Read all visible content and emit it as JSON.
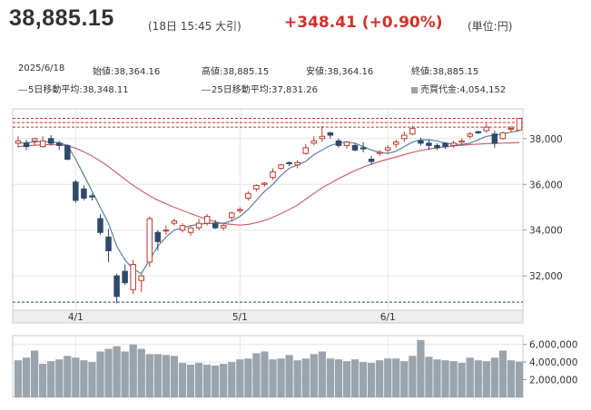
{
  "header": {
    "price": "38,885.15",
    "meta": "(18日 15:45 大引)",
    "change": "+348.41",
    "change_pct": "(+0.90%)",
    "unit": "(単位:円)",
    "change_color": "#d0322a"
  },
  "info": {
    "date": "2025/6/18",
    "open_label": "始値",
    "open": "38,364.16",
    "high_label": "高値",
    "high": "38,885.15",
    "low_label": "安値",
    "low": "38,364.16",
    "close_label": "終値",
    "close": "38,885.15",
    "ma5_label": "5日移動平均",
    "ma5": "38,348.11",
    "ma25_label": "25日移動平均",
    "ma25": "37,831.26",
    "vol_label": "売買代金",
    "vol": "4,054,152"
  },
  "chart_data": {
    "type": "candlestick",
    "price_axis": {
      "ylim": [
        30500,
        39300
      ],
      "ticks": [
        "38,000",
        "36,000",
        "34,000",
        "32,000"
      ],
      "tick_values": [
        38000,
        36000,
        34000,
        32000
      ]
    },
    "volume_axis": {
      "ylim": [
        0,
        7000000
      ],
      "ticks": [
        "6,000,000",
        "4,000,000",
        "2,000,000"
      ],
      "tick_values": [
        6000000,
        4000000,
        2000000
      ]
    },
    "x_ticks": [
      {
        "label": "4/1",
        "index": 7
      },
      {
        "label": "5/1",
        "index": 27
      },
      {
        "label": "6/1",
        "index": 45
      }
    ],
    "reference_lines": [
      38885,
      38700,
      38500,
      30850
    ],
    "colors": {
      "up": "#c0392b",
      "down": "#2e4a6b",
      "ma5": "#5a7fa6",
      "ma25": "#c96470",
      "volume": "#9aa4ad",
      "grid": "#e6e6e6",
      "ref": "#c0392b"
    },
    "candles": [
      [
        37800,
        38100,
        37600,
        37900
      ],
      [
        37800,
        37950,
        37500,
        37650
      ],
      [
        37900,
        38050,
        37700,
        38000
      ],
      [
        37650,
        38100,
        37600,
        37900
      ],
      [
        38000,
        38150,
        37700,
        37800
      ],
      [
        37800,
        37900,
        37500,
        37700
      ],
      [
        37700,
        37750,
        37050,
        37100
      ],
      [
        36100,
        36200,
        35200,
        35300
      ],
      [
        35800,
        35950,
        35300,
        35400
      ],
      [
        35500,
        35600,
        35300,
        35450
      ],
      [
        34500,
        34700,
        33800,
        33900
      ],
      [
        33700,
        34050,
        32600,
        33100
      ],
      [
        32000,
        32100,
        30800,
        31100
      ],
      [
        32200,
        32500,
        31600,
        31700
      ],
      [
        31400,
        32700,
        31200,
        32500
      ],
      [
        31800,
        32100,
        31300,
        32000
      ],
      [
        32600,
        34600,
        32400,
        34500
      ],
      [
        33900,
        34000,
        33100,
        33500
      ],
      [
        34000,
        34200,
        33800,
        34000
      ],
      [
        34300,
        34500,
        34200,
        34400
      ],
      [
        34000,
        34300,
        33900,
        34200
      ],
      [
        33900,
        34200,
        33750,
        34100
      ],
      [
        34100,
        34500,
        34000,
        34300
      ],
      [
        34300,
        34700,
        34200,
        34600
      ],
      [
        34300,
        34450,
        34050,
        34100
      ],
      [
        34100,
        34300,
        34000,
        34200
      ],
      [
        34550,
        34800,
        34400,
        34750
      ],
      [
        34850,
        35000,
        34750,
        34900
      ],
      [
        35400,
        35700,
        35300,
        35600
      ],
      [
        35800,
        36000,
        35700,
        35950
      ],
      [
        36000,
        36100,
        35900,
        36050
      ],
      [
        36300,
        36700,
        36200,
        36550
      ],
      [
        36700,
        36900,
        36650,
        36850
      ],
      [
        36950,
        37000,
        36800,
        36900
      ],
      [
        36850,
        37050,
        36700,
        36950
      ],
      [
        37350,
        37750,
        37300,
        37600
      ],
      [
        37800,
        38100,
        37700,
        37900
      ],
      [
        38000,
        38550,
        37850,
        38100
      ],
      [
        38250,
        38300,
        38000,
        38150
      ],
      [
        37900,
        38000,
        37600,
        37700
      ],
      [
        37700,
        37900,
        37550,
        37850
      ],
      [
        37700,
        37800,
        37450,
        37500
      ],
      [
        37600,
        37850,
        37400,
        37550
      ],
      [
        37100,
        37250,
        36850,
        37000
      ],
      [
        37350,
        37500,
        37250,
        37400
      ],
      [
        37500,
        37700,
        37350,
        37600
      ],
      [
        37750,
        37950,
        37600,
        37850
      ],
      [
        38000,
        38300,
        37850,
        38150
      ],
      [
        38200,
        38550,
        38150,
        38450
      ],
      [
        37900,
        38050,
        37700,
        37800
      ],
      [
        37800,
        37950,
        37500,
        37700
      ],
      [
        37700,
        37800,
        37500,
        37600
      ],
      [
        37800,
        37850,
        37550,
        37650
      ],
      [
        37700,
        37900,
        37600,
        37800
      ],
      [
        37850,
        38000,
        37700,
        37900
      ],
      [
        38100,
        38300,
        38000,
        38200
      ],
      [
        38300,
        38350,
        38200,
        38250
      ],
      [
        38350,
        38650,
        38250,
        38500
      ],
      [
        38200,
        38350,
        37600,
        37800
      ],
      [
        38000,
        38300,
        37950,
        38250
      ],
      [
        38400,
        38550,
        38300,
        38450
      ],
      [
        38364,
        38885,
        38364,
        38885
      ]
    ],
    "ma5": [
      37800,
      37820,
      37850,
      37880,
      37850,
      37820,
      37700,
      37100,
      36400,
      35700,
      35000,
      34300,
      33300,
      32700,
      32300,
      32100,
      32700,
      33300,
      33700,
      34000,
      34100,
      34200,
      34250,
      34300,
      34300,
      34300,
      34400,
      34600,
      34900,
      35300,
      35700,
      36000,
      36400,
      36700,
      36850,
      37000,
      37300,
      37500,
      37700,
      37800,
      37850,
      37800,
      37650,
      37500,
      37400,
      37350,
      37450,
      37650,
      37850,
      37950,
      37950,
      37900,
      37800,
      37750,
      37750,
      37800,
      37950,
      38100,
      38150,
      38200,
      38280,
      38348
    ],
    "ma25": [
      37650,
      37680,
      37710,
      37730,
      37740,
      37730,
      37700,
      37580,
      37420,
      37240,
      37020,
      36780,
      36500,
      36220,
      35960,
      35720,
      35500,
      35310,
      35150,
      35000,
      34860,
      34720,
      34590,
      34470,
      34370,
      34290,
      34250,
      34220,
      34250,
      34320,
      34420,
      34560,
      34720,
      34900,
      35100,
      35350,
      35600,
      35850,
      36050,
      36250,
      36430,
      36600,
      36750,
      36880,
      37000,
      37100,
      37200,
      37300,
      37400,
      37480,
      37550,
      37600,
      37640,
      37680,
      37710,
      37740,
      37760,
      37780,
      37790,
      37800,
      37815,
      37831
    ],
    "volume": [
      4200000,
      4500000,
      5300000,
      3800000,
      4100000,
      4300000,
      4700000,
      4500000,
      4200000,
      4000000,
      5200000,
      5500000,
      5800000,
      5200000,
      6000000,
      5500000,
      4900000,
      4900000,
      4800000,
      4700000,
      3900000,
      3700000,
      3900000,
      3700000,
      3600000,
      3800000,
      4000000,
      4300000,
      4400000,
      5000000,
      5200000,
      4300000,
      4400000,
      4800000,
      4200000,
      4400000,
      4900000,
      5200000,
      4400000,
      4300000,
      4100000,
      4300000,
      4000000,
      3900000,
      4200000,
      4400000,
      4400000,
      4100000,
      4700000,
      6500000,
      4600000,
      4300000,
      4200000,
      4100000,
      3900000,
      4500000,
      4200000,
      4100000,
      4500000,
      5300000,
      4200000,
      4054152
    ]
  }
}
